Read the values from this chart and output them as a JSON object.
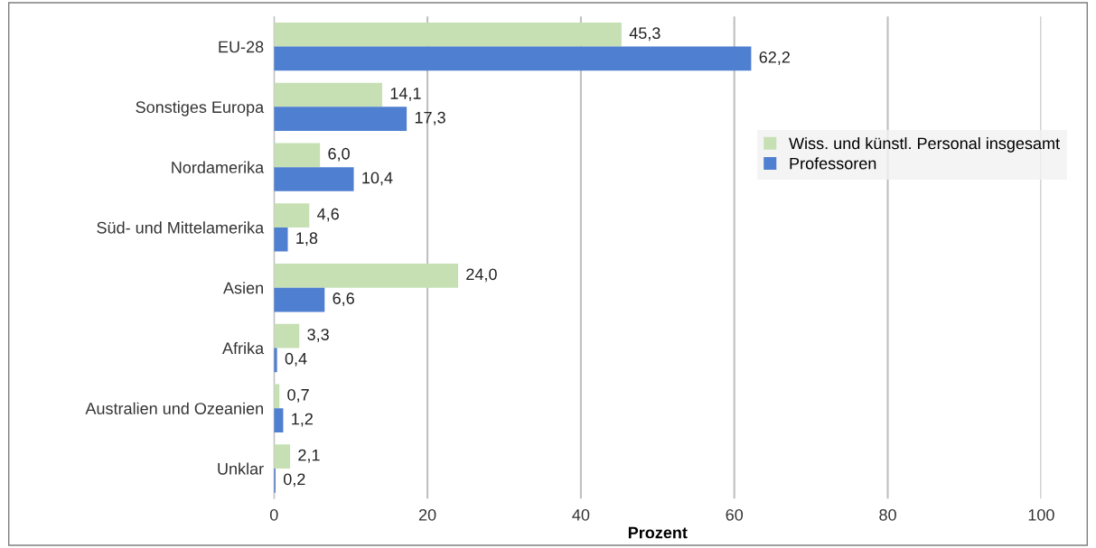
{
  "chart_data": {
    "type": "bar",
    "orientation": "horizontal",
    "xlabel": "Prozent",
    "categories": [
      "EU-28",
      "Sonstiges Europa",
      "Nordamerika",
      "Süd- und Mittelamerika",
      "Asien",
      "Afrika",
      "Australien und Ozeanien",
      "Unklar"
    ],
    "series": [
      {
        "name": "Wiss. und künstl. Personal insgesamt",
        "color": "#c6e0b4",
        "values": [
          45.3,
          14.1,
          6.0,
          4.6,
          24.0,
          3.3,
          0.7,
          2.1
        ],
        "value_labels": [
          "45,3",
          "14,1",
          "6,0",
          "4,6",
          "24,0",
          "3,3",
          "0,7",
          "2,1"
        ]
      },
      {
        "name": "Professoren",
        "color": "#4f7fd0",
        "values": [
          62.2,
          17.3,
          10.4,
          1.8,
          6.6,
          0.4,
          1.2,
          0.2
        ],
        "value_labels": [
          "62,2",
          "17,3",
          "10,4",
          "1,8",
          "6,6",
          "0,4",
          "1,2",
          "0,2"
        ]
      }
    ],
    "xlim": [
      0,
      100
    ],
    "xticks": [
      0,
      20,
      40,
      60,
      80,
      100
    ],
    "grid": "x",
    "legend": "right"
  }
}
